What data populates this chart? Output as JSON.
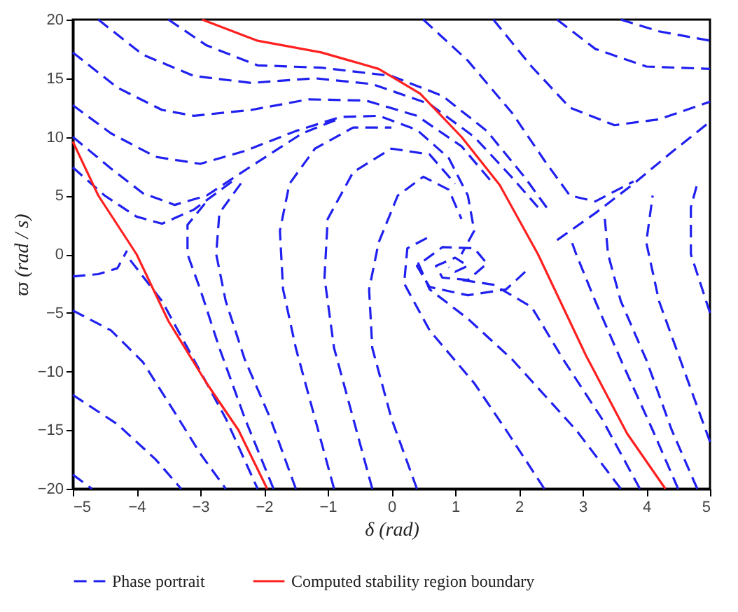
{
  "chart_data": {
    "type": "line",
    "xlabel": "δ (rad)",
    "ylabel": "ϖ (rad / s)",
    "xlim": [
      -5,
      5
    ],
    "xticks": [
      -5,
      -4,
      -3,
      -2,
      -1,
      0,
      1,
      2,
      3,
      4,
      5
    ],
    "ylim": [
      -20,
      20
    ],
    "yticks": [
      -20,
      -15,
      -10,
      -5,
      0,
      5,
      10,
      15,
      20
    ],
    "grid": false,
    "legend": "bottom",
    "series": [
      {
        "name": "Phase portrait",
        "color": "#2020f0",
        "line_style": "dashed",
        "x": [
          -4.6,
          -3.9,
          -3.1,
          -2.2,
          -1.2,
          -0.3,
          0.6,
          1.3,
          1.9,
          2.3,
          null,
          -5,
          -4.3,
          -3.6,
          -3.1,
          -2.2,
          -1.3,
          -0.4,
          0.4,
          1.1,
          1.6,
          null,
          -5,
          -4.4,
          -3.7,
          -3,
          -2.3,
          -1.5,
          -0.8,
          -0.2,
          0.4,
          0.9,
          1.2,
          1.3,
          1.1,
          null,
          -5,
          -4.4,
          -3.9,
          -3.4,
          -2.9,
          -2.2,
          -1.4,
          -0.8,
          null,
          -5,
          -4.5,
          -4,
          -3.6,
          -3.1,
          -2.5,
          null,
          -5,
          -4.6,
          -4.3,
          -4.15,
          null,
          -4.1,
          -3.6,
          -3.1,
          -2.6,
          -2.1,
          null,
          -5,
          -4.4,
          -3.9,
          -3.4,
          -3,
          -2.6,
          null,
          -5,
          -4.3,
          -3.7,
          -3.3,
          null,
          -5,
          -4.7,
          null,
          -1.85,
          -2.3,
          -2.7,
          -3,
          -3.2,
          -3.2,
          -2.9,
          null,
          -1.5,
          -1.9,
          -2.3,
          -2.6,
          -2.75,
          -2.7,
          -2.3,
          null,
          -0.9,
          -1.2,
          -1.5,
          -1.7,
          -1.75,
          -1.6,
          -1.2,
          -0.6,
          0,
          null,
          -0.3,
          -0.6,
          -0.9,
          -1.05,
          -1,
          -0.6,
          0,
          0.6,
          1,
          null,
          0.4,
          0,
          -0.3,
          -0.35,
          -0.2,
          0.1,
          0.5,
          0.9,
          1.1,
          null,
          2.4,
          1.8,
          1.3,
          0.6,
          0.2,
          0.25,
          0.6,
          null,
          3.6,
          2.9,
          1.9,
          1.2,
          0.6,
          0.4,
          null,
          3.9,
          3.3,
          2.7,
          2.2,
          1.6,
          1.1,
          null,
          4.5,
          4.1,
          3.6,
          3.2,
          2.9,
          2.8,
          null,
          4.8,
          4.4,
          4,
          3.6,
          3.4,
          3.35,
          null,
          5,
          4.6,
          4.2,
          4,
          4.1,
          null,
          5,
          4.7,
          4.7,
          4.8,
          null,
          2.6,
          3.2,
          3.8,
          4.4,
          5,
          null,
          1.6,
          2.2,
          2.8,
          3.5,
          4.2,
          5,
          null,
          2.6,
          3.2,
          4,
          5,
          null,
          3.6,
          4.2,
          5,
          null,
          0.5,
          1.2,
          1.9,
          2.4,
          2.8,
          3.2,
          3.8,
          null,
          -3.5,
          -2.9,
          -2.1,
          -1.1,
          0,
          0.8,
          1.5,
          2.1,
          2.5,
          null,
          2.1,
          1.8,
          1.2,
          0.6,
          0.4,
          0.8,
          1.3,
          1.5,
          1.2,
          0.8,
          0.7,
          1,
          1.2,
          1,
          0.9
        ],
        "values": [
          20,
          17,
          15.2,
          14.6,
          15,
          14.5,
          12.8,
          10,
          6.5,
          4,
          null,
          17.2,
          14.2,
          12.3,
          11.8,
          12.3,
          13.2,
          13.1,
          11.8,
          9.2,
          6,
          null,
          12.7,
          10.3,
          8.3,
          7.7,
          8.8,
          10.5,
          11.7,
          11.8,
          10.6,
          8.2,
          5,
          2,
          0,
          null,
          10,
          7.3,
          5.2,
          4.2,
          5,
          7.5,
          10.3,
          11.6,
          null,
          7.4,
          5,
          3.2,
          2.6,
          3.8,
          6.2,
          null,
          -1.9,
          -1.7,
          -1.2,
          0.3,
          null,
          -0.5,
          -4,
          -9,
          -14,
          -20,
          null,
          -4.8,
          -6.5,
          -9.2,
          -13.5,
          -17,
          -20,
          null,
          -12,
          -14.5,
          -17.5,
          -20,
          null,
          -18.8,
          -20,
          null,
          -20,
          -14,
          -8,
          -3,
          0,
          2.5,
          4.5,
          null,
          -20,
          -14,
          -9,
          -4,
          0,
          3.5,
          6.5,
          null,
          -20,
          -14,
          -8,
          -3,
          2,
          6,
          9,
          10.8,
          10.8,
          null,
          -20,
          -14,
          -8,
          -2,
          3,
          7,
          9,
          8.5,
          6,
          null,
          -20,
          -14,
          -8,
          -3,
          1,
          5,
          6.6,
          5.5,
          3,
          null,
          -20,
          -15,
          -11,
          -6.5,
          -2.5,
          0.5,
          1.5,
          null,
          -20,
          -15,
          -9,
          -5.5,
          -3,
          -0.5,
          null,
          -20,
          -14,
          -9,
          -4.5,
          -2.6,
          -2.2,
          null,
          -20,
          -15,
          -9,
          -4,
          0,
          1.5,
          null,
          -20,
          -15,
          -9,
          -4,
          0,
          3,
          null,
          -16,
          -10,
          -4,
          1,
          5,
          null,
          -5,
          0,
          4,
          6,
          null,
          1.2,
          3.5,
          6,
          8.7,
          11.3,
          null,
          20,
          16,
          12.5,
          11,
          11.5,
          13,
          null,
          20,
          17.5,
          16,
          15.8,
          null,
          20,
          19,
          18.2,
          null,
          20,
          16.5,
          12,
          8,
          5,
          4.5,
          6.2,
          null,
          20,
          17.8,
          16.1,
          15.9,
          15.2,
          13.5,
          10.5,
          6.5,
          3.5,
          null,
          -1.5,
          -3,
          -3.5,
          -2.8,
          -1,
          0.6,
          0.5,
          -0.8,
          -2.2,
          -2,
          -1,
          -0.3,
          -1,
          -1.5,
          -1.1
        ]
      },
      {
        "name": "Computed stability region boundary",
        "color": "#ff2020",
        "line_style": "solid",
        "x": [
          -5,
          -4.6,
          -4,
          -3.5,
          -2.9,
          -2.4,
          -1.95,
          null,
          -2.97,
          -2.1,
          -1.1,
          -0.2,
          0.45,
          1.1,
          1.7,
          2.3,
          3.05,
          3.7,
          4.3
        ],
        "values": [
          9.6,
          5,
          0,
          -5.7,
          -11,
          -15,
          -20,
          null,
          20,
          18.2,
          17.2,
          15.8,
          13.7,
          10,
          5.9,
          0,
          -8.6,
          -15.3,
          -20
        ]
      }
    ]
  }
}
